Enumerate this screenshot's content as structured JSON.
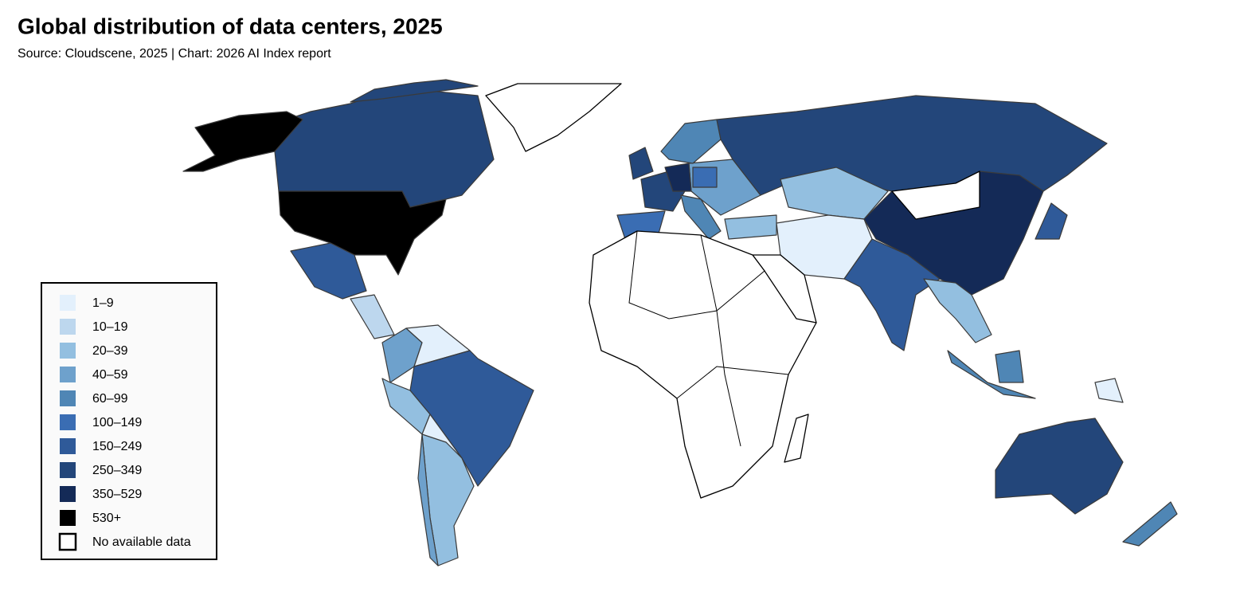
{
  "title": "Global distribution of data centers, 2025",
  "subtitle": "Source: Cloudscene, 2025 | Chart: 2026 AI Index report",
  "legend": [
    {
      "label": "1–9",
      "color": "#e3f0fc"
    },
    {
      "label": "10–19",
      "color": "#bdd7ee"
    },
    {
      "label": "20–39",
      "color": "#93bfe0"
    },
    {
      "label": "40–59",
      "color": "#6ea1cc"
    },
    {
      "label": "60–99",
      "color": "#4f86b5"
    },
    {
      "label": "100–149",
      "color": "#3a6db3"
    },
    {
      "label": "150–249",
      "color": "#2f5a99"
    },
    {
      "label": "250–349",
      "color": "#23467a"
    },
    {
      "label": "350–529",
      "color": "#142a57"
    },
    {
      "label": "530+",
      "color": "#000000"
    },
    {
      "label": "No available data",
      "color": "#ffffff"
    }
  ]
}
